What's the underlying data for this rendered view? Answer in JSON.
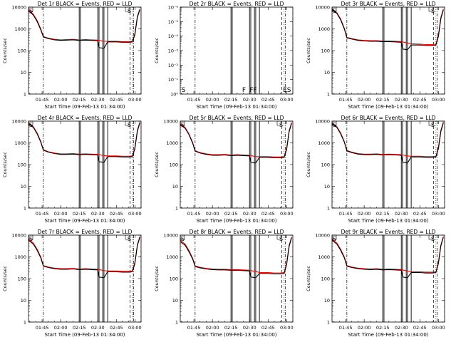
{
  "figure": {
    "panels": [
      {
        "title": "Det 1r BLACK = Events, RED = LLD"
      },
      {
        "title": "Det 2r BLACK = Events, RED = LLD"
      },
      {
        "title": "Det 3r BLACK = Events, RED = LLD"
      },
      {
        "title": "Det 4r BLACK = Events, RED = LLD"
      },
      {
        "title": "Det 5r BLACK = Events, RED = LLD"
      },
      {
        "title": "Det 6r BLACK = Events, RED = LLD"
      },
      {
        "title": "Det 7r BLACK = Events, RED = LLD"
      },
      {
        "title": "Det 8r BLACK = Events, RED = LLD"
      },
      {
        "title": "Det 9r BLACK = Events, RED = LLD"
      }
    ],
    "xlabel": "Start Time (09-Feb-13 01:34:00)",
    "ylabel": "Counts/sec",
    "colors": {
      "events": "#000000",
      "lld": "#ff0000"
    }
  },
  "chart_data": [
    {
      "type": "line",
      "title": "Det 1r BLACK = Events, RED = LLD",
      "xlabel": "Start Time (09-Feb-13 01:34:00)",
      "ylabel": "Counts/sec",
      "x_ticks": [
        "01:45",
        "02:00",
        "02:15",
        "02:30",
        "02:45",
        "03:00"
      ],
      "y_ticks": [
        "1",
        "10",
        "100",
        "1000",
        "10000"
      ],
      "ylim": [
        1,
        12000
      ],
      "yscale": "log",
      "x": [
        "01:34",
        "01:38",
        "01:41",
        "01:44",
        "01:46",
        "01:50",
        "01:55",
        "02:00",
        "02:05",
        "02:10",
        "02:15",
        "02:20",
        "02:25",
        "02:30",
        "02:31",
        "02:35",
        "02:38",
        "02:45",
        "02:50",
        "02:55",
        "02:58",
        "03:00",
        "03:02",
        "03:04"
      ],
      "series": [
        {
          "name": "Events",
          "values": [
            8000,
            5000,
            2500,
            1000,
            480,
            400,
            350,
            330,
            340,
            350,
            330,
            340,
            330,
            320,
            150,
            140,
            280,
            280,
            270,
            270,
            280,
            600,
            4000,
            9000
          ]
        },
        {
          "name": "LLD",
          "values": [
            9000,
            5500,
            2800,
            1100,
            500,
            420,
            370,
            350,
            360,
            370,
            350,
            360,
            350,
            340,
            330,
            300,
            300,
            300,
            290,
            290,
            300,
            700,
            4500,
            10000
          ]
        }
      ],
      "annotations": [
        "S",
        "S"
      ]
    },
    {
      "type": "line",
      "title": "Det 2r BLACK = Events, RED = LLD",
      "xlabel": "Start Time (09-Feb-13 01:34:00)",
      "ylabel": "Counts/sec",
      "x_ticks": [
        "01:45",
        "02:00",
        "02:15",
        "02:30",
        "02:45",
        "03:00"
      ],
      "y_ticks": [
        "10⁰",
        "10⁻¹",
        "10⁻²",
        "10⁻³",
        "10⁻⁴",
        "10⁻⁵",
        "10⁻⁶"
      ],
      "ylim": [
        1,
        1e-06
      ],
      "yscale": "log",
      "x": [],
      "series": [],
      "annotations": [
        "S",
        "F",
        "FF",
        "ES"
      ]
    },
    {
      "type": "line",
      "title": "Det 3r BLACK = Events, RED = LLD",
      "xlabel": "Start Time (09-Feb-13 01:34:00)",
      "ylabel": "Counts/sec",
      "x_ticks": [
        "01:45",
        "02:00",
        "02:15",
        "02:30",
        "02:45",
        "03:00"
      ],
      "y_ticks": [
        "1",
        "10",
        "100",
        "1000",
        "10000"
      ],
      "ylim": [
        1,
        12000
      ],
      "yscale": "log",
      "x": [
        "01:34",
        "01:38",
        "01:41",
        "01:44",
        "01:46",
        "01:50",
        "01:55",
        "02:00",
        "02:05",
        "02:10",
        "02:15",
        "02:20",
        "02:25",
        "02:30",
        "02:31",
        "02:35",
        "02:38",
        "02:45",
        "02:50",
        "02:55",
        "02:58",
        "03:00",
        "03:02",
        "03:04"
      ],
      "series": [
        {
          "name": "Events",
          "values": [
            9000,
            6000,
            3000,
            1100,
            430,
            380,
            330,
            310,
            300,
            300,
            290,
            290,
            280,
            270,
            130,
            120,
            200,
            200,
            190,
            190,
            200,
            500,
            3500,
            9000
          ]
        },
        {
          "name": "LLD",
          "values": [
            10000,
            6500,
            3300,
            1200,
            460,
            400,
            350,
            330,
            320,
            320,
            310,
            310,
            300,
            290,
            280,
            250,
            230,
            220,
            210,
            210,
            220,
            600,
            4000,
            10000
          ]
        }
      ],
      "annotations": [
        "S",
        "S"
      ]
    },
    {
      "type": "line",
      "title": "Det 4r BLACK = Events, RED = LLD",
      "xlabel": "Start Time (09-Feb-13 01:34:00)",
      "ylabel": "Counts/sec",
      "x_ticks": [
        "01:45",
        "02:00",
        "02:15",
        "02:30",
        "02:45",
        "03:00"
      ],
      "y_ticks": [
        "1",
        "10",
        "100",
        "1000",
        "10000"
      ],
      "ylim": [
        1,
        12000
      ],
      "yscale": "log",
      "x": [
        "01:34",
        "01:38",
        "01:41",
        "01:44",
        "01:46",
        "01:50",
        "01:55",
        "02:00",
        "02:05",
        "02:10",
        "02:15",
        "02:20",
        "02:25",
        "02:30",
        "02:31",
        "02:35",
        "02:38",
        "02:45",
        "02:50",
        "02:55",
        "02:58",
        "03:00",
        "03:02",
        "03:04"
      ],
      "series": [
        {
          "name": "Events",
          "values": [
            9000,
            6000,
            3000,
            1200,
            520,
            420,
            360,
            330,
            330,
            340,
            320,
            330,
            320,
            310,
            150,
            140,
            260,
            260,
            250,
            250,
            260,
            600,
            4000,
            10000
          ]
        },
        {
          "name": "LLD",
          "values": [
            10000,
            6500,
            3300,
            1300,
            550,
            440,
            380,
            350,
            350,
            360,
            340,
            350,
            340,
            330,
            320,
            290,
            280,
            280,
            270,
            270,
            280,
            700,
            4500,
            11000
          ]
        }
      ],
      "annotations": [
        "S",
        "S"
      ]
    },
    {
      "type": "line",
      "title": "Det 5r BLACK = Events, RED = LLD",
      "xlabel": "Start Time (09-Feb-13 01:34:00)",
      "ylabel": "Counts/sec",
      "x_ticks": [
        "01:45",
        "02:00",
        "02:15",
        "02:30",
        "02:45",
        "03:00"
      ],
      "y_ticks": [
        "1",
        "10",
        "100",
        "1000",
        "10000"
      ],
      "ylim": [
        1,
        12000
      ],
      "yscale": "log",
      "x": [
        "01:34",
        "01:38",
        "01:41",
        "01:44",
        "01:46",
        "01:50",
        "01:55",
        "02:00",
        "02:05",
        "02:10",
        "02:15",
        "02:20",
        "02:25",
        "02:30",
        "02:31",
        "02:35",
        "02:38",
        "02:45",
        "02:50",
        "02:55",
        "02:58",
        "03:00",
        "03:02",
        "03:04"
      ],
      "series": [
        {
          "name": "Events",
          "values": [
            8000,
            5500,
            2800,
            1100,
            470,
            380,
            330,
            300,
            300,
            310,
            290,
            300,
            290,
            280,
            140,
            130,
            240,
            240,
            230,
            230,
            240,
            550,
            3800,
            9500
          ]
        },
        {
          "name": "LLD",
          "values": [
            9000,
            6000,
            3000,
            1200,
            500,
            400,
            350,
            320,
            320,
            330,
            310,
            320,
            310,
            300,
            290,
            260,
            260,
            260,
            250,
            250,
            260,
            650,
            4200,
            10500
          ]
        }
      ],
      "annotations": [
        "S",
        "S"
      ]
    },
    {
      "type": "line",
      "title": "Det 6r BLACK = Events, RED = LLD",
      "xlabel": "Start Time (09-Feb-13 01:34:00)",
      "ylabel": "Counts/sec",
      "x_ticks": [
        "01:45",
        "02:00",
        "02:15",
        "02:30",
        "02:45",
        "03:00"
      ],
      "y_ticks": [
        "1",
        "10",
        "100",
        "1000",
        "10000"
      ],
      "ylim": [
        1,
        12000
      ],
      "yscale": "log",
      "x": [
        "01:34",
        "01:38",
        "01:41",
        "01:44",
        "01:46",
        "01:50",
        "01:55",
        "02:00",
        "02:05",
        "02:10",
        "02:15",
        "02:20",
        "02:25",
        "02:30",
        "02:31",
        "02:35",
        "02:38",
        "02:45",
        "02:50",
        "02:55",
        "02:58",
        "03:00",
        "03:02",
        "03:04"
      ],
      "series": [
        {
          "name": "Events",
          "values": [
            9000,
            6000,
            3000,
            1200,
            480,
            400,
            340,
            320,
            320,
            330,
            310,
            320,
            310,
            300,
            140,
            130,
            250,
            250,
            240,
            240,
            250,
            600,
            4000,
            10000
          ]
        },
        {
          "name": "LLD",
          "values": [
            10000,
            6500,
            3300,
            1300,
            510,
            420,
            360,
            340,
            340,
            350,
            330,
            340,
            330,
            320,
            310,
            280,
            270,
            270,
            260,
            260,
            270,
            700,
            4500,
            11000
          ]
        }
      ],
      "annotations": [
        "S",
        "S"
      ]
    },
    {
      "type": "line",
      "title": "Det 7r BLACK = Events, RED = LLD",
      "xlabel": "Start Time (09-Feb-13 01:34:00)",
      "ylabel": "Counts/sec",
      "x_ticks": [
        "01:45",
        "02:00",
        "02:15",
        "02:30",
        "02:45",
        "03:00"
      ],
      "y_ticks": [
        "1",
        "10",
        "100",
        "1000",
        "10000"
      ],
      "ylim": [
        1,
        12000
      ],
      "yscale": "log",
      "x": [
        "01:34",
        "01:38",
        "01:41",
        "01:44",
        "01:46",
        "01:50",
        "01:55",
        "02:00",
        "02:05",
        "02:10",
        "02:15",
        "02:20",
        "02:25",
        "02:30",
        "02:31",
        "02:35",
        "02:38",
        "02:45",
        "02:50",
        "02:55",
        "02:58",
        "03:00",
        "03:02",
        "03:04"
      ],
      "series": [
        {
          "name": "Events",
          "values": [
            7000,
            4500,
            2300,
            1000,
            420,
            360,
            320,
            300,
            300,
            310,
            290,
            300,
            290,
            280,
            130,
            120,
            230,
            230,
            220,
            220,
            230,
            550,
            3800,
            9500
          ]
        },
        {
          "name": "LLD",
          "values": [
            8000,
            5000,
            2600,
            1100,
            450,
            380,
            340,
            320,
            320,
            330,
            310,
            320,
            310,
            300,
            290,
            260,
            250,
            250,
            240,
            240,
            250,
            650,
            4200,
            10500
          ]
        }
      ],
      "annotations": [
        "S",
        "S"
      ]
    },
    {
      "type": "line",
      "title": "Det 8r BLACK = Events, RED = LLD",
      "xlabel": "Start Time (09-Feb-13 01:34:00)",
      "ylabel": "Counts/sec",
      "x_ticks": [
        "01:45",
        "02:00",
        "02:15",
        "02:30",
        "02:45",
        "03:00"
      ],
      "y_ticks": [
        "1",
        "10",
        "100",
        "1000",
        "10000"
      ],
      "ylim": [
        1,
        12000
      ],
      "yscale": "log",
      "x": [
        "01:34",
        "01:38",
        "01:41",
        "01:44",
        "01:46",
        "01:50",
        "01:55",
        "02:00",
        "02:05",
        "02:10",
        "02:15",
        "02:20",
        "02:25",
        "02:30",
        "02:31",
        "02:35",
        "02:38",
        "02:45",
        "02:50",
        "02:55",
        "02:58",
        "03:00",
        "03:02",
        "03:04"
      ],
      "series": [
        {
          "name": "Events",
          "values": [
            6000,
            4000,
            2000,
            900,
            400,
            350,
            310,
            290,
            280,
            280,
            270,
            270,
            260,
            250,
            130,
            120,
            190,
            190,
            180,
            180,
            190,
            500,
            3500,
            9000
          ]
        },
        {
          "name": "LLD",
          "values": [
            7000,
            4500,
            2300,
            1000,
            430,
            370,
            330,
            310,
            300,
            300,
            290,
            290,
            280,
            270,
            260,
            240,
            210,
            210,
            200,
            200,
            210,
            600,
            4000,
            10000
          ]
        }
      ],
      "annotations": [
        "S",
        "S"
      ]
    },
    {
      "type": "line",
      "title": "Det 9r BLACK = Events, RED = LLD",
      "xlabel": "Start Time (09-Feb-13 01:34:00)",
      "ylabel": "Counts/sec",
      "x_ticks": [
        "01:45",
        "02:00",
        "02:15",
        "02:30",
        "02:45",
        "03:00"
      ],
      "y_ticks": [
        "1",
        "10",
        "100",
        "1000",
        "10000"
      ],
      "ylim": [
        1,
        12000
      ],
      "yscale": "log",
      "x": [
        "01:34",
        "01:38",
        "01:41",
        "01:44",
        "01:46",
        "01:50",
        "01:55",
        "02:00",
        "02:05",
        "02:10",
        "02:15",
        "02:20",
        "02:25",
        "02:30",
        "02:31",
        "02:35",
        "02:38",
        "02:45",
        "02:50",
        "02:55",
        "02:58",
        "03:00",
        "03:02",
        "03:04"
      ],
      "series": [
        {
          "name": "Events",
          "values": [
            7000,
            4500,
            2300,
            1000,
            420,
            360,
            320,
            300,
            290,
            300,
            280,
            290,
            280,
            270,
            130,
            120,
            210,
            210,
            200,
            200,
            210,
            550,
            3800,
            9500
          ]
        },
        {
          "name": "LLD",
          "values": [
            8000,
            5000,
            2600,
            1100,
            450,
            380,
            340,
            320,
            310,
            320,
            300,
            310,
            300,
            290,
            280,
            250,
            230,
            230,
            220,
            220,
            230,
            650,
            4200,
            10500
          ]
        }
      ],
      "annotations": [
        "S",
        "S"
      ]
    }
  ],
  "markers": {
    "dashdot": [
      "01:46",
      "02:59"
    ],
    "solid": [
      "02:15",
      "02:16",
      "02:30",
      "02:31",
      "02:34",
      "02:35",
      "02:38"
    ],
    "dashed": [
      "02:56",
      "03:05"
    ]
  }
}
